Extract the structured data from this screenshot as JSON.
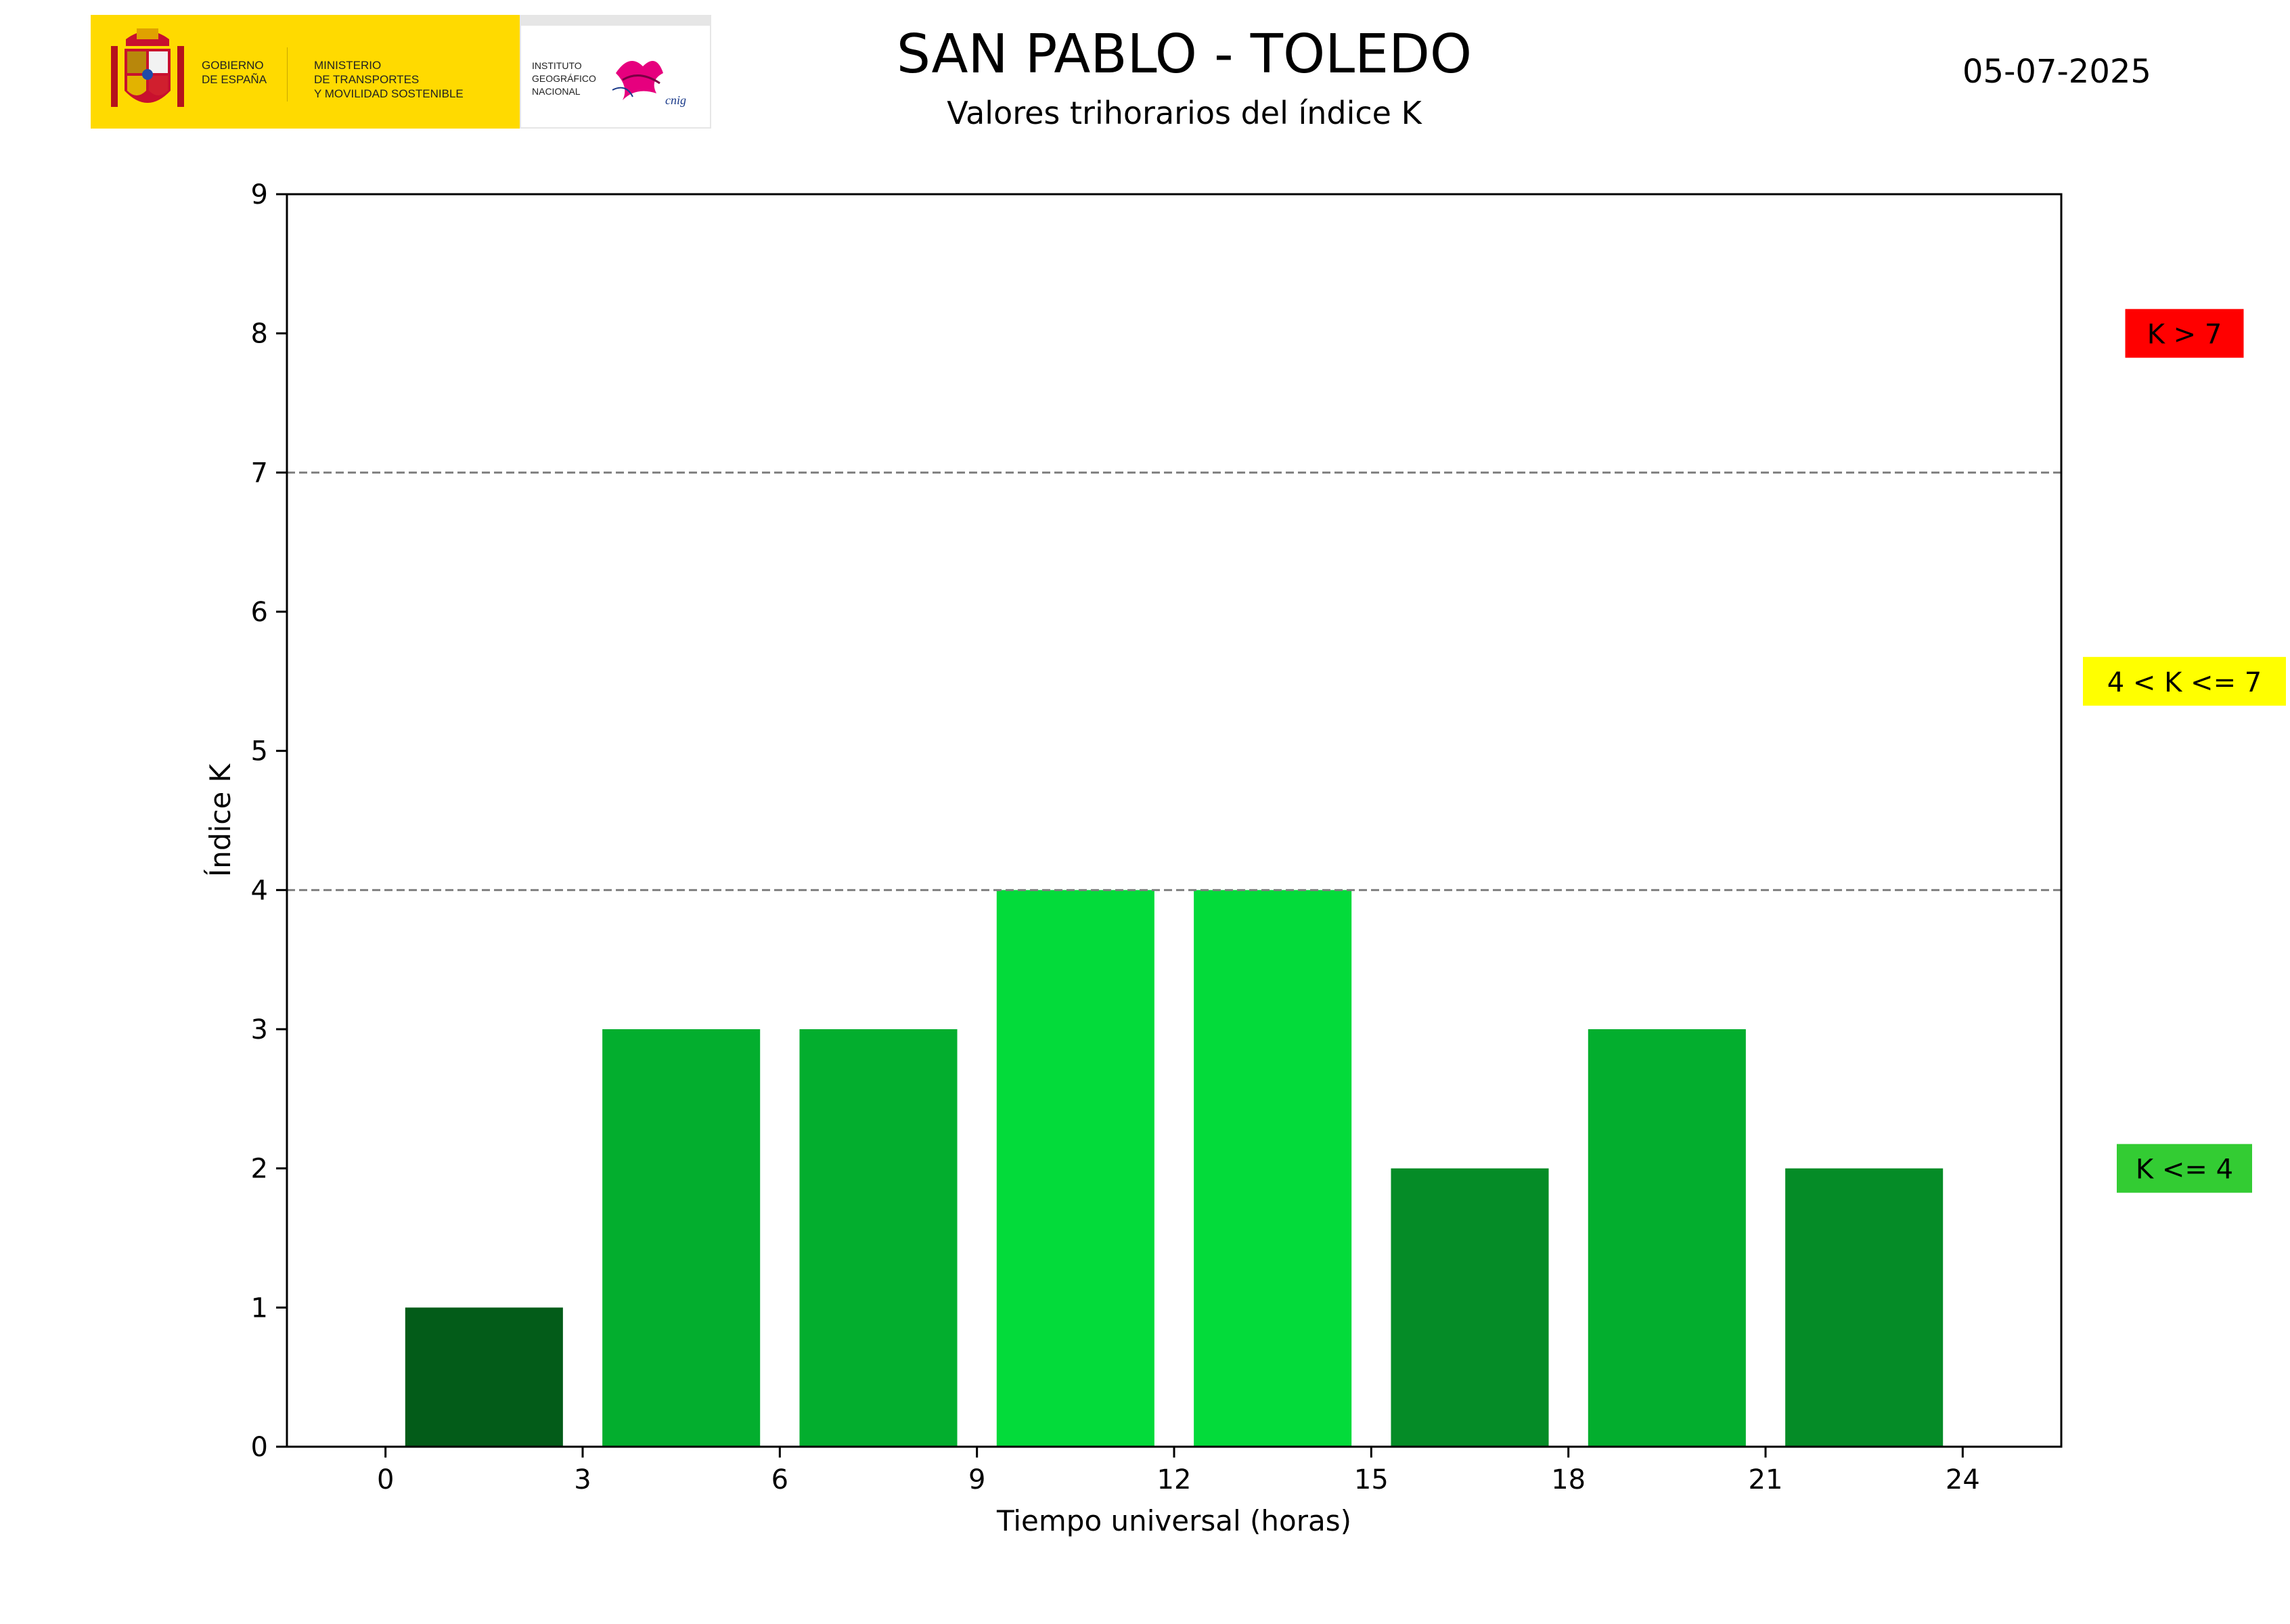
{
  "header": {
    "title": "SAN PABLO - TOLEDO",
    "subtitle": "Valores trihorarios del índice K",
    "date": "05-07-2025"
  },
  "logo": {
    "gobierno_text": "GOBIERNO\nDE ESPAÑA",
    "ministerio_text": "MINISTERIO\nDE TRANSPORTES\nY MOVILIDAD SOSTENIBLE",
    "instituto_text": "INSTITUTO\nGEOGRÁFICO\nNACIONAL",
    "cnig_text": "cnig"
  },
  "chart_data": {
    "type": "bar",
    "title": "SAN PABLO - TOLEDO",
    "subtitle": "Valores trihorarios del índice K",
    "xlabel": "Tiempo universal (horas)",
    "ylabel": "Índice K",
    "xlim": [
      -1.5,
      25.5
    ],
    "ylim": [
      0,
      9
    ],
    "xticks": [
      0,
      3,
      6,
      9,
      12,
      15,
      18,
      21,
      24
    ],
    "yticks": [
      0,
      1,
      2,
      3,
      4,
      5,
      6,
      7,
      8,
      9
    ],
    "bar_width_hours": 2.4,
    "bars": [
      {
        "x": 1.5,
        "value": 1,
        "color": "#035c19"
      },
      {
        "x": 4.5,
        "value": 3,
        "color": "#03ae2e"
      },
      {
        "x": 7.5,
        "value": 3,
        "color": "#03ae2e"
      },
      {
        "x": 10.5,
        "value": 4,
        "color": "#03db3a"
      },
      {
        "x": 13.5,
        "value": 4,
        "color": "#03db3a"
      },
      {
        "x": 16.5,
        "value": 2,
        "color": "#058c27"
      },
      {
        "x": 19.5,
        "value": 3,
        "color": "#03ae2e"
      },
      {
        "x": 22.5,
        "value": 2,
        "color": "#058c27"
      }
    ],
    "threshold_lines": [
      {
        "value": 4,
        "style": "dashed",
        "color": "#808080"
      },
      {
        "value": 7,
        "style": "dashed",
        "color": "#808080"
      }
    ],
    "legend": [
      {
        "label": "K > 7",
        "color": "#ff0000",
        "level": 8
      },
      {
        "label": "4 < K <= 7",
        "color": "#ffff00",
        "level": 5.5
      },
      {
        "label": "K <= 4",
        "color": "#33cc33",
        "level": 2
      }
    ],
    "grid": false
  }
}
